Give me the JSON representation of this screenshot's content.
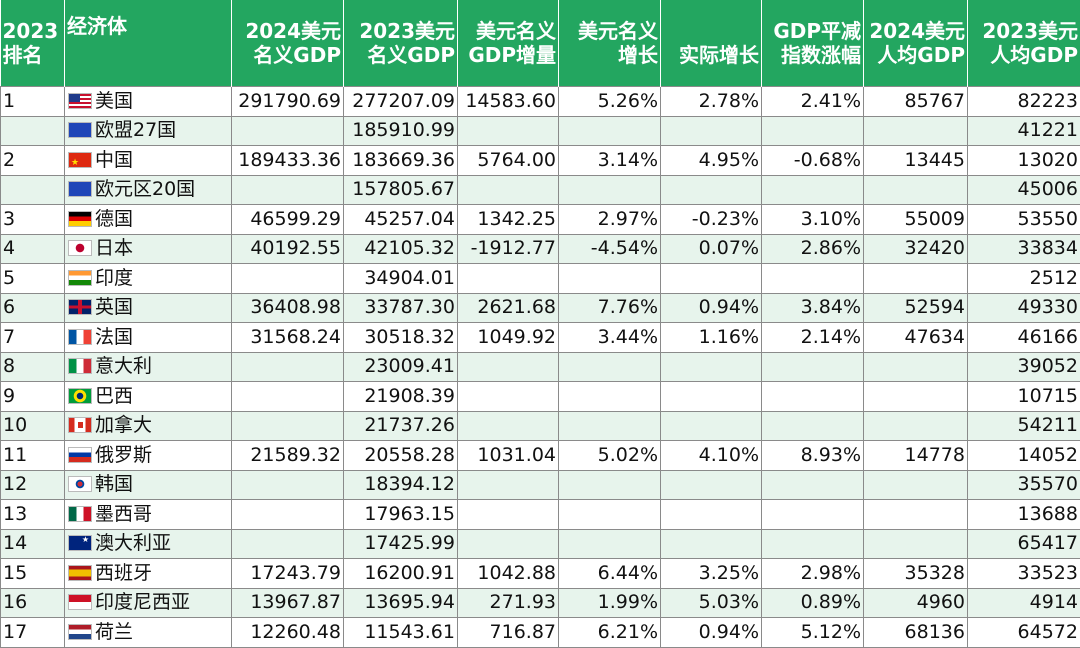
{
  "header": {
    "col0": [
      "2023",
      "排名"
    ],
    "col1": "经济体",
    "col2": [
      "2024美元",
      "名义GDP"
    ],
    "col3": [
      "2023美元",
      "名义GDP"
    ],
    "col4": [
      "美元名义",
      "GDP增量"
    ],
    "col5": [
      "美元名义",
      "增长"
    ],
    "col6": "实际增长",
    "col7": [
      "GDP平减",
      "指数涨幅"
    ],
    "col8": [
      "2024美元",
      "人均GDP"
    ],
    "col9": [
      "2023美元",
      "人均GDP"
    ]
  },
  "rows": [
    {
      "rank": "1",
      "flag": "us",
      "name": "美国",
      "gdp2024": "291790.69",
      "gdp2023": "277207.09",
      "increment": "14583.60",
      "nominal_growth": "5.26%",
      "real_growth": "2.78%",
      "deflator": "2.41%",
      "pc2024": "85767",
      "pc2023": "82223"
    },
    {
      "rank": "",
      "flag": "eu",
      "name": "欧盟27国",
      "gdp2024": "",
      "gdp2023": "185910.99",
      "increment": "",
      "nominal_growth": "",
      "real_growth": "",
      "deflator": "",
      "pc2024": "",
      "pc2023": "41221"
    },
    {
      "rank": "2",
      "flag": "cn",
      "name": "中国",
      "gdp2024": "189433.36",
      "gdp2023": "183669.36",
      "increment": "5764.00",
      "nominal_growth": "3.14%",
      "real_growth": "4.95%",
      "deflator": "-0.68%",
      "pc2024": "13445",
      "pc2023": "13020"
    },
    {
      "rank": "",
      "flag": "eu",
      "name": "欧元区20国",
      "gdp2024": "",
      "gdp2023": "157805.67",
      "increment": "",
      "nominal_growth": "",
      "real_growth": "",
      "deflator": "",
      "pc2024": "",
      "pc2023": "45006"
    },
    {
      "rank": "3",
      "flag": "de",
      "name": "德国",
      "gdp2024": "46599.29",
      "gdp2023": "45257.04",
      "increment": "1342.25",
      "nominal_growth": "2.97%",
      "real_growth": "-0.23%",
      "deflator": "3.10%",
      "pc2024": "55009",
      "pc2023": "53550"
    },
    {
      "rank": "4",
      "flag": "jp",
      "name": "日本",
      "gdp2024": "40192.55",
      "gdp2023": "42105.32",
      "increment": "-1912.77",
      "nominal_growth": "-4.54%",
      "real_growth": "0.07%",
      "deflator": "2.86%",
      "pc2024": "32420",
      "pc2023": "33834"
    },
    {
      "rank": "5",
      "flag": "in",
      "name": "印度",
      "gdp2024": "",
      "gdp2023": "34904.01",
      "increment": "",
      "nominal_growth": "",
      "real_growth": "",
      "deflator": "",
      "pc2024": "",
      "pc2023": "2512"
    },
    {
      "rank": "6",
      "flag": "gb",
      "name": "英国",
      "gdp2024": "36408.98",
      "gdp2023": "33787.30",
      "increment": "2621.68",
      "nominal_growth": "7.76%",
      "real_growth": "0.94%",
      "deflator": "3.84%",
      "pc2024": "52594",
      "pc2023": "49330"
    },
    {
      "rank": "7",
      "flag": "fr",
      "name": "法国",
      "gdp2024": "31568.24",
      "gdp2023": "30518.32",
      "increment": "1049.92",
      "nominal_growth": "3.44%",
      "real_growth": "1.16%",
      "deflator": "2.14%",
      "pc2024": "47634",
      "pc2023": "46166"
    },
    {
      "rank": "8",
      "flag": "it",
      "name": "意大利",
      "gdp2024": "",
      "gdp2023": "23009.41",
      "increment": "",
      "nominal_growth": "",
      "real_growth": "",
      "deflator": "",
      "pc2024": "",
      "pc2023": "39052"
    },
    {
      "rank": "9",
      "flag": "br",
      "name": "巴西",
      "gdp2024": "",
      "gdp2023": "21908.39",
      "increment": "",
      "nominal_growth": "",
      "real_growth": "",
      "deflator": "",
      "pc2024": "",
      "pc2023": "10715"
    },
    {
      "rank": "10",
      "flag": "ca",
      "name": "加拿大",
      "gdp2024": "",
      "gdp2023": "21737.26",
      "increment": "",
      "nominal_growth": "",
      "real_growth": "",
      "deflator": "",
      "pc2024": "",
      "pc2023": "54211"
    },
    {
      "rank": "11",
      "flag": "ru",
      "name": "俄罗斯",
      "gdp2024": "21589.32",
      "gdp2023": "20558.28",
      "increment": "1031.04",
      "nominal_growth": "5.02%",
      "real_growth": "4.10%",
      "deflator": "8.93%",
      "pc2024": "14778",
      "pc2023": "14052"
    },
    {
      "rank": "12",
      "flag": "kr",
      "name": "韩国",
      "gdp2024": "",
      "gdp2023": "18394.12",
      "increment": "",
      "nominal_growth": "",
      "real_growth": "",
      "deflator": "",
      "pc2024": "",
      "pc2023": "35570"
    },
    {
      "rank": "13",
      "flag": "mx",
      "name": "墨西哥",
      "gdp2024": "",
      "gdp2023": "17963.15",
      "increment": "",
      "nominal_growth": "",
      "real_growth": "",
      "deflator": "",
      "pc2024": "",
      "pc2023": "13688"
    },
    {
      "rank": "14",
      "flag": "au",
      "name": "澳大利亚",
      "gdp2024": "",
      "gdp2023": "17425.99",
      "increment": "",
      "nominal_growth": "",
      "real_growth": "",
      "deflator": "",
      "pc2024": "",
      "pc2023": "65417"
    },
    {
      "rank": "15",
      "flag": "es",
      "name": "西班牙",
      "gdp2024": "17243.79",
      "gdp2023": "16200.91",
      "increment": "1042.88",
      "nominal_growth": "6.44%",
      "real_growth": "3.25%",
      "deflator": "2.98%",
      "pc2024": "35328",
      "pc2023": "33523"
    },
    {
      "rank": "16",
      "flag": "id",
      "name": "印度尼西亚",
      "gdp2024": "13967.87",
      "gdp2023": "13695.94",
      "increment": "271.93",
      "nominal_growth": "1.99%",
      "real_growth": "5.03%",
      "deflator": "0.89%",
      "pc2024": "4960",
      "pc2023": "4914"
    },
    {
      "rank": "17",
      "flag": "nl",
      "name": "荷兰",
      "gdp2024": "12260.48",
      "gdp2023": "11543.61",
      "increment": "716.87",
      "nominal_growth": "6.21%",
      "real_growth": "0.94%",
      "deflator": "5.12%",
      "pc2024": "68136",
      "pc2023": "64572"
    }
  ]
}
